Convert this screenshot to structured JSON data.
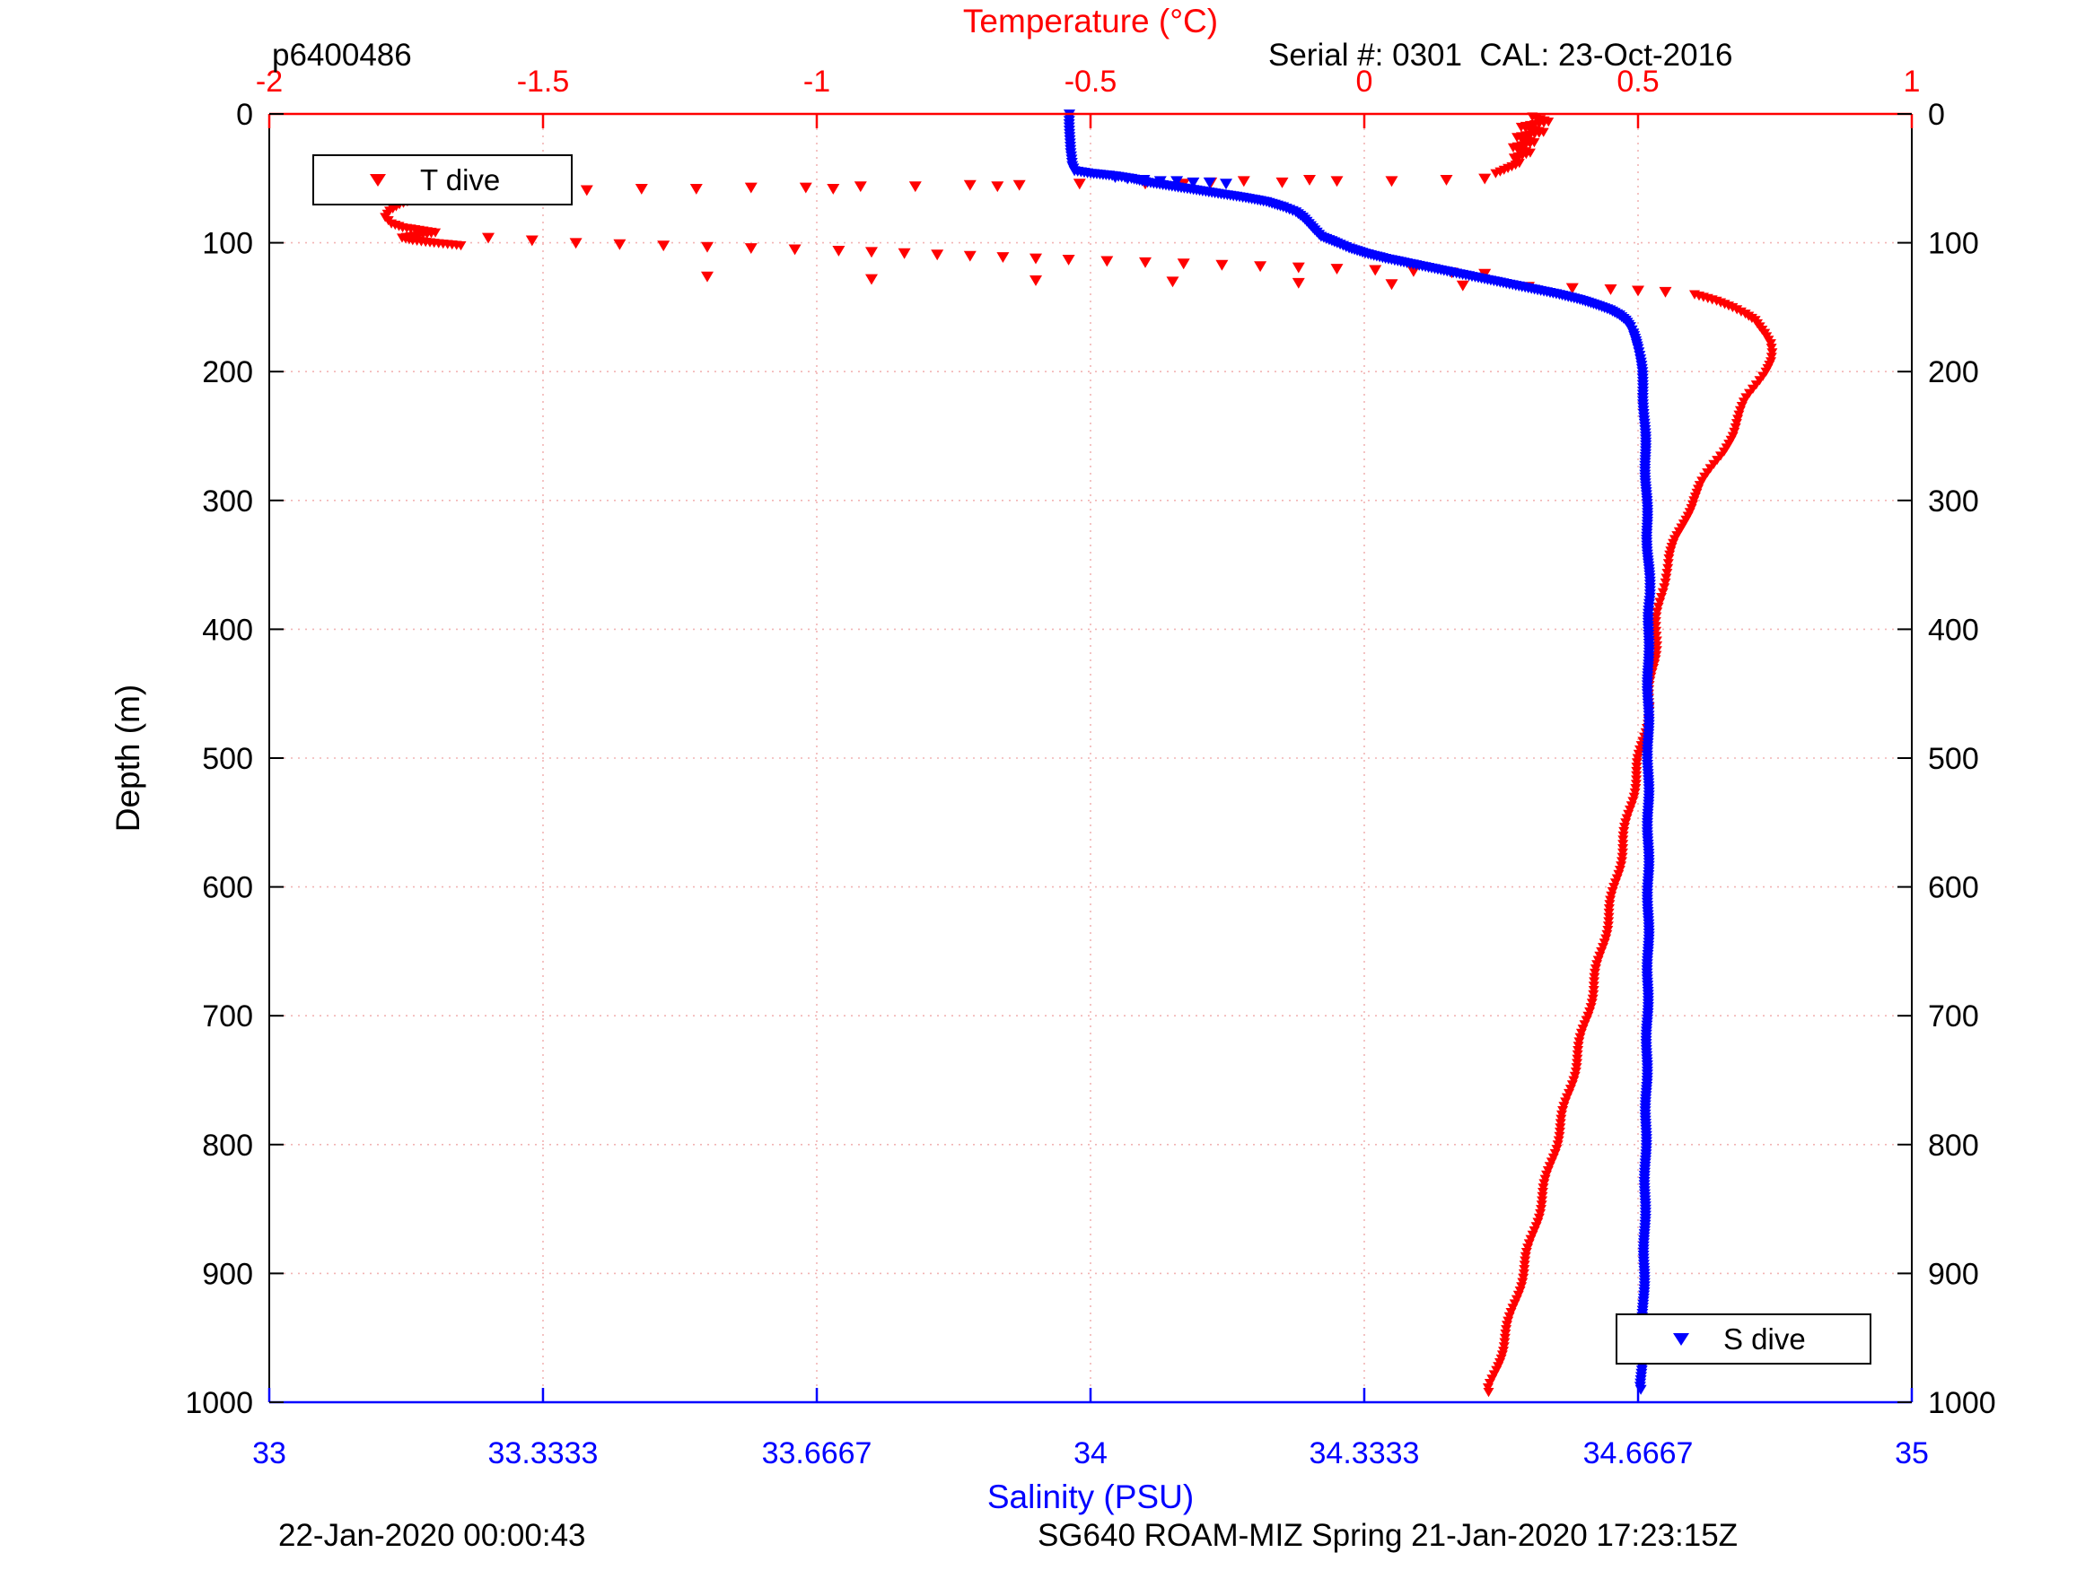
{
  "chart_data": {
    "type": "scatter",
    "annotations": {
      "top_left": "p6400486",
      "top_right": "Serial #: 0301  CAL: 23-Oct-2016",
      "bottom_left": "22-Jan-2020 00:00:43",
      "bottom_center": "SG640 ROAM-MIZ Spring 21-Jan-2020 17:23:15Z"
    },
    "axes": {
      "top": {
        "label": "Temperature (°C)",
        "color": "#ff0000",
        "range": [
          -2,
          1
        ],
        "tick_values": [
          -2,
          -1.5,
          -1,
          -0.5,
          0,
          0.5,
          1
        ],
        "tick_labels": [
          "-2",
          "-1.5",
          "-1",
          "-0.5",
          "0",
          "0.5",
          "1"
        ]
      },
      "bottom": {
        "label": "Salinity (PSU)",
        "color": "#0000ff",
        "range": [
          33,
          35
        ],
        "tick_values": [
          33,
          33.3333,
          33.6667,
          34,
          34.3333,
          34.6667,
          35
        ],
        "tick_labels": [
          "33",
          "33.3333",
          "33.6667",
          "34",
          "34.3333",
          "34.6667",
          "35"
        ]
      },
      "depth": {
        "label": "Depth (m)",
        "color": "#000000",
        "range": [
          0,
          1000
        ],
        "tick_values": [
          0,
          100,
          200,
          300,
          400,
          500,
          600,
          700,
          800,
          900,
          1000
        ],
        "tick_labels": [
          "0",
          "100",
          "200",
          "300",
          "400",
          "500",
          "600",
          "700",
          "800",
          "900",
          "1000"
        ]
      }
    },
    "style": {
      "grid_color": "#f2b4b4",
      "background": "#ffffff"
    },
    "series": [
      {
        "name": "T dive",
        "color": "#ff0000",
        "x_axis": "top",
        "marker": "triangle-down",
        "scatter": [
          [
            50,
            0.22
          ],
          [
            51,
            0.15
          ],
          [
            52,
            0.05
          ],
          [
            52,
            -0.05
          ],
          [
            53,
            -0.15
          ],
          [
            53,
            -0.28
          ],
          [
            54,
            -0.4
          ],
          [
            54,
            -0.52
          ],
          [
            55,
            -0.63
          ],
          [
            55,
            -0.72
          ],
          [
            56,
            -0.82
          ],
          [
            56,
            -0.92
          ],
          [
            57,
            -1.02
          ],
          [
            57,
            -1.12
          ],
          [
            58,
            -1.22
          ],
          [
            58,
            -1.32
          ],
          [
            59,
            -1.42
          ],
          [
            59,
            -1.52
          ],
          [
            60,
            -1.62
          ],
          [
            58,
            -0.97
          ],
          [
            56,
            -0.67
          ],
          [
            54,
            -0.33
          ],
          [
            52,
            -0.22
          ],
          [
            51,
            -0.1
          ],
          [
            96,
            -1.6
          ],
          [
            98,
            -1.52
          ],
          [
            100,
            -1.44
          ],
          [
            101,
            -1.36
          ],
          [
            102,
            -1.28
          ],
          [
            103,
            -1.2
          ],
          [
            104,
            -1.12
          ],
          [
            105,
            -1.04
          ],
          [
            106,
            -0.96
          ],
          [
            107,
            -0.9
          ],
          [
            108,
            -0.84
          ],
          [
            109,
            -0.78
          ],
          [
            110,
            -0.72
          ],
          [
            111,
            -0.66
          ],
          [
            112,
            -0.6
          ],
          [
            113,
            -0.54
          ],
          [
            114,
            -0.47
          ],
          [
            115,
            -0.4
          ],
          [
            116,
            -0.33
          ],
          [
            117,
            -0.26
          ],
          [
            118,
            -0.19
          ],
          [
            119,
            -0.12
          ],
          [
            120,
            -0.05
          ],
          [
            121,
            0.02
          ],
          [
            122,
            0.09
          ],
          [
            123,
            0.16
          ],
          [
            124,
            0.22
          ],
          [
            126,
            -1.2
          ],
          [
            128,
            -0.9
          ],
          [
            129,
            -0.6
          ],
          [
            130,
            -0.35
          ],
          [
            131,
            -0.12
          ],
          [
            132,
            0.05
          ],
          [
            133,
            0.18
          ],
          [
            134,
            0.3
          ],
          [
            135,
            0.38
          ],
          [
            136,
            0.45
          ],
          [
            137,
            0.5
          ],
          [
            138,
            0.55
          ]
        ],
        "profiles": [
          [
            [
              2,
              0.31
            ],
            [
              6,
              0.34
            ],
            [
              10,
              0.29
            ],
            [
              14,
              0.33
            ],
            [
              18,
              0.28
            ],
            [
              22,
              0.31
            ],
            [
              26,
              0.27
            ],
            [
              30,
              0.3
            ],
            [
              34,
              0.27
            ],
            [
              38,
              0.28
            ],
            [
              42,
              0.26
            ],
            [
              46,
              0.24
            ]
          ],
          [
            [
              62,
              -1.68
            ],
            [
              66,
              -1.73
            ],
            [
              70,
              -1.76
            ],
            [
              75,
              -1.78
            ],
            [
              80,
              -1.79
            ],
            [
              85,
              -1.78
            ],
            [
              88,
              -1.76
            ],
            [
              90,
              -1.73
            ],
            [
              92,
              -1.7
            ],
            [
              94,
              -1.73
            ],
            [
              96,
              -1.76
            ],
            [
              98,
              -1.74
            ],
            [
              100,
              -1.7
            ],
            [
              102,
              -1.65
            ]
          ],
          [
            [
              140,
              0.6
            ],
            [
              145,
              0.64
            ],
            [
              150,
              0.67
            ],
            [
              155,
              0.695
            ],
            [
              160,
              0.715
            ],
            [
              165,
              0.725
            ],
            [
              170,
              0.735
            ],
            [
              178,
              0.745
            ],
            [
              185,
              0.745
            ],
            [
              192,
              0.74
            ],
            [
              200,
              0.73
            ],
            [
              210,
              0.715
            ],
            [
              220,
              0.7
            ],
            [
              230,
              0.69
            ],
            [
              240,
              0.68
            ],
            [
              250,
              0.67
            ],
            [
              262,
              0.655
            ],
            [
              275,
              0.635
            ],
            [
              288,
              0.615
            ],
            [
              300,
              0.6
            ],
            [
              315,
              0.585
            ],
            [
              330,
              0.57
            ],
            [
              345,
              0.558
            ],
            [
              360,
              0.548
            ],
            [
              375,
              0.542
            ],
            [
              390,
              0.537
            ],
            [
              405,
              0.533
            ],
            [
              420,
              0.53
            ],
            [
              440,
              0.525
            ],
            [
              460,
              0.52
            ],
            [
              480,
              0.512
            ],
            [
              500,
              0.503
            ],
            [
              520,
              0.494
            ],
            [
              540,
              0.485
            ],
            [
              560,
              0.476
            ],
            [
              580,
              0.467
            ],
            [
              600,
              0.458
            ],
            [
              620,
              0.448
            ],
            [
              640,
              0.438
            ],
            [
              660,
              0.428
            ],
            [
              680,
              0.418
            ],
            [
              700,
              0.407
            ],
            [
              720,
              0.396
            ],
            [
              740,
              0.385
            ],
            [
              760,
              0.374
            ],
            [
              780,
              0.362
            ],
            [
              800,
              0.35
            ],
            [
              820,
              0.338
            ],
            [
              840,
              0.326
            ],
            [
              860,
              0.314
            ],
            [
              880,
              0.302
            ],
            [
              900,
              0.29
            ],
            [
              920,
              0.277
            ],
            [
              940,
              0.264
            ],
            [
              960,
              0.251
            ],
            [
              975,
              0.24
            ],
            [
              985,
              0.232
            ],
            [
              992,
              0.227
            ]
          ]
        ]
      },
      {
        "name": "S dive",
        "color": "#0000ff",
        "x_axis": "bottom",
        "marker": "triangle-down",
        "scatter": [
          [
            49,
            34.03
          ],
          [
            50,
            34.045
          ],
          [
            51,
            34.065
          ],
          [
            52,
            34.085
          ],
          [
            52,
            34.105
          ],
          [
            53,
            34.125
          ],
          [
            53,
            34.145
          ],
          [
            54,
            34.165
          ]
        ],
        "profiles": [
          [
            [
              0,
              33.975
            ],
            [
              10,
              33.975
            ],
            [
              20,
              33.975
            ],
            [
              30,
              33.975
            ],
            [
              40,
              33.977
            ],
            [
              44,
              33.98
            ],
            [
              46,
              34.0
            ],
            [
              48,
              34.03
            ],
            [
              50,
              34.05
            ],
            [
              53,
              34.07
            ],
            [
              56,
              34.1
            ],
            [
              59,
              34.13
            ],
            [
              62,
              34.16
            ],
            [
              65,
              34.19
            ],
            [
              68,
              34.215
            ],
            [
              72,
              34.235
            ],
            [
              76,
              34.25
            ],
            [
              80,
              34.258
            ],
            [
              85,
              34.265
            ],
            [
              90,
              34.272
            ],
            [
              95,
              34.28
            ],
            [
              100,
              34.3
            ],
            [
              104,
              34.315
            ],
            [
              108,
              34.335
            ],
            [
              112,
              34.36
            ],
            [
              116,
              34.39
            ],
            [
              120,
              34.42
            ],
            [
              124,
              34.45
            ],
            [
              128,
              34.48
            ],
            [
              132,
              34.51
            ],
            [
              136,
              34.54
            ],
            [
              140,
              34.57
            ],
            [
              144,
              34.595
            ],
            [
              148,
              34.615
            ],
            [
              152,
              34.632
            ],
            [
              156,
              34.644
            ],
            [
              160,
              34.652
            ],
            [
              165,
              34.658
            ],
            [
              170,
              34.662
            ],
            [
              176,
              34.665
            ],
            [
              182,
              34.667
            ],
            [
              190,
              34.669
            ],
            [
              200,
              34.671
            ],
            [
              215,
              34.673
            ],
            [
              230,
              34.674
            ],
            [
              250,
              34.675
            ],
            [
              275,
              34.676
            ],
            [
              300,
              34.677
            ],
            [
              330,
              34.678
            ],
            [
              360,
              34.68
            ],
            [
              375,
              34.681
            ],
            [
              390,
              34.68
            ],
            [
              420,
              34.679
            ],
            [
              450,
              34.679
            ],
            [
              500,
              34.679
            ],
            [
              550,
              34.679
            ],
            [
              600,
              34.679
            ],
            [
              650,
              34.679
            ],
            [
              700,
              34.678
            ],
            [
              750,
              34.677
            ],
            [
              800,
              34.676
            ],
            [
              850,
              34.675
            ],
            [
              900,
              34.674
            ],
            [
              950,
              34.672
            ],
            [
              975,
              34.671
            ],
            [
              990,
              34.67
            ]
          ]
        ]
      }
    ],
    "legend": [
      {
        "series": "T dive",
        "position": "top-left"
      },
      {
        "series": "S dive",
        "position": "bottom-right"
      }
    ]
  }
}
